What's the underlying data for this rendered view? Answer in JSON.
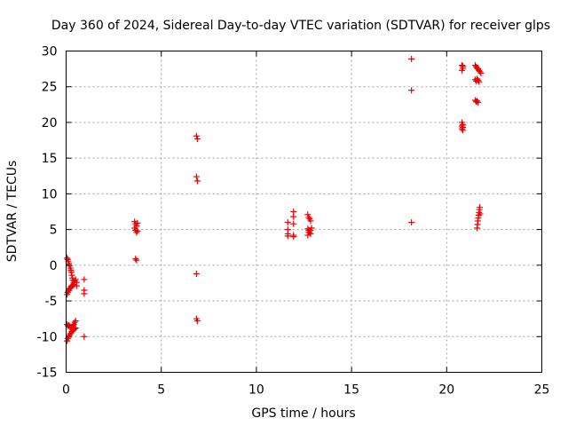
{
  "chart_data": {
    "type": "scatter",
    "title": "Day 360 of 2024, Sidereal Day-to-day VTEC variation (SDTVAR) for receiver glps",
    "xlabel": "GPS time / hours",
    "ylabel": "SDTVAR / TECUs",
    "xlim": [
      0,
      25
    ],
    "ylim": [
      -15,
      30
    ],
    "xticks": [
      0,
      5,
      10,
      15,
      20,
      25
    ],
    "yticks": [
      -15,
      -10,
      -5,
      0,
      5,
      10,
      15,
      20,
      25,
      30
    ],
    "grid": true,
    "marker": "+",
    "color": "#ee0000",
    "points": [
      [
        0.05,
        1.0
      ],
      [
        0.08,
        0.8
      ],
      [
        0.12,
        0.5
      ],
      [
        0.15,
        0.2
      ],
      [
        0.18,
        -0.1
      ],
      [
        0.22,
        -0.4
      ],
      [
        0.25,
        -0.7
      ],
      [
        0.28,
        -1.0
      ],
      [
        0.3,
        -1.4
      ],
      [
        0.33,
        -1.8
      ],
      [
        0.35,
        -2.1
      ],
      [
        0.4,
        -2.4
      ],
      [
        0.42,
        -2.7
      ],
      [
        0.45,
        -2.2
      ],
      [
        0.5,
        -2.0
      ],
      [
        0.55,
        -2.4
      ],
      [
        0.55,
        -2.9
      ],
      [
        0.05,
        -4.1
      ],
      [
        0.08,
        -3.8
      ],
      [
        0.12,
        -3.6
      ],
      [
        0.15,
        -3.5
      ],
      [
        0.18,
        -3.3
      ],
      [
        0.22,
        -3.2
      ],
      [
        0.25,
        -3.0
      ],
      [
        0.3,
        -2.9
      ],
      [
        0.35,
        -2.8
      ],
      [
        0.4,
        -2.7
      ],
      [
        0.05,
        -8.3
      ],
      [
        0.1,
        -8.5
      ],
      [
        0.15,
        -8.4
      ],
      [
        0.2,
        -8.6
      ],
      [
        0.25,
        -8.8
      ],
      [
        0.3,
        -8.7
      ],
      [
        0.35,
        -8.5
      ],
      [
        0.4,
        -8.3
      ],
      [
        0.45,
        -8.0
      ],
      [
        0.5,
        -7.8
      ],
      [
        0.05,
        -10.6
      ],
      [
        0.08,
        -10.3
      ],
      [
        0.12,
        -10.1
      ],
      [
        0.15,
        -9.9
      ],
      [
        0.2,
        -9.7
      ],
      [
        0.25,
        -9.5
      ],
      [
        0.3,
        -9.3
      ],
      [
        0.35,
        -9.1
      ],
      [
        0.4,
        -9.0
      ],
      [
        0.45,
        -8.9
      ],
      [
        0.5,
        -8.8
      ],
      [
        0.95,
        -2.0
      ],
      [
        0.95,
        -3.5
      ],
      [
        0.95,
        -4.0
      ],
      [
        0.95,
        -10.0
      ],
      [
        3.6,
        6.1
      ],
      [
        3.65,
        5.8
      ],
      [
        3.7,
        5.5
      ],
      [
        3.75,
        5.9
      ],
      [
        3.6,
        5.2
      ],
      [
        3.65,
        4.9
      ],
      [
        3.7,
        4.6
      ],
      [
        3.75,
        4.8
      ],
      [
        3.65,
        0.9
      ],
      [
        3.7,
        0.7
      ],
      [
        6.85,
        18.1
      ],
      [
        6.9,
        17.7
      ],
      [
        6.85,
        12.4
      ],
      [
        6.9,
        11.8
      ],
      [
        6.85,
        -1.2
      ],
      [
        6.85,
        -7.5
      ],
      [
        6.9,
        -7.8
      ],
      [
        11.65,
        6.0
      ],
      [
        11.65,
        5.0
      ],
      [
        11.65,
        4.4
      ],
      [
        11.65,
        4.1
      ],
      [
        11.95,
        7.5
      ],
      [
        11.95,
        6.8
      ],
      [
        11.95,
        5.8
      ],
      [
        11.95,
        4.2
      ],
      [
        11.95,
        4.0
      ],
      [
        12.7,
        7.1
      ],
      [
        12.75,
        6.7
      ],
      [
        12.8,
        6.5
      ],
      [
        12.85,
        6.2
      ],
      [
        12.7,
        5.1
      ],
      [
        12.75,
        4.9
      ],
      [
        12.8,
        4.6
      ],
      [
        12.85,
        4.4
      ],
      [
        12.7,
        4.2
      ],
      [
        12.75,
        4.6
      ],
      [
        12.85,
        4.9
      ],
      [
        12.9,
        5.2
      ],
      [
        18.15,
        28.9
      ],
      [
        18.15,
        24.5
      ],
      [
        18.15,
        6.0
      ],
      [
        20.8,
        28.0
      ],
      [
        20.85,
        27.6
      ],
      [
        20.8,
        27.3
      ],
      [
        20.85,
        27.9
      ],
      [
        20.8,
        20.0
      ],
      [
        20.85,
        19.7
      ],
      [
        20.8,
        19.5
      ],
      [
        20.85,
        19.3
      ],
      [
        20.8,
        19.1
      ],
      [
        20.85,
        18.9
      ],
      [
        21.5,
        28.0
      ],
      [
        21.55,
        27.8
      ],
      [
        21.6,
        27.6
      ],
      [
        21.65,
        27.5
      ],
      [
        21.7,
        27.3
      ],
      [
        21.75,
        27.1
      ],
      [
        21.8,
        26.9
      ],
      [
        21.5,
        26.0
      ],
      [
        21.55,
        25.8
      ],
      [
        21.6,
        26.1
      ],
      [
        21.65,
        25.9
      ],
      [
        21.7,
        25.7
      ],
      [
        21.5,
        23.1
      ],
      [
        21.55,
        22.9
      ],
      [
        21.6,
        23.0
      ],
      [
        21.65,
        22.8
      ],
      [
        21.6,
        5.2
      ],
      [
        21.62,
        5.7
      ],
      [
        21.64,
        6.2
      ],
      [
        21.66,
        6.6
      ],
      [
        21.68,
        7.0
      ],
      [
        21.7,
        7.4
      ],
      [
        21.72,
        7.8
      ],
      [
        21.74,
        8.1
      ],
      [
        21.76,
        7.2
      ]
    ]
  }
}
